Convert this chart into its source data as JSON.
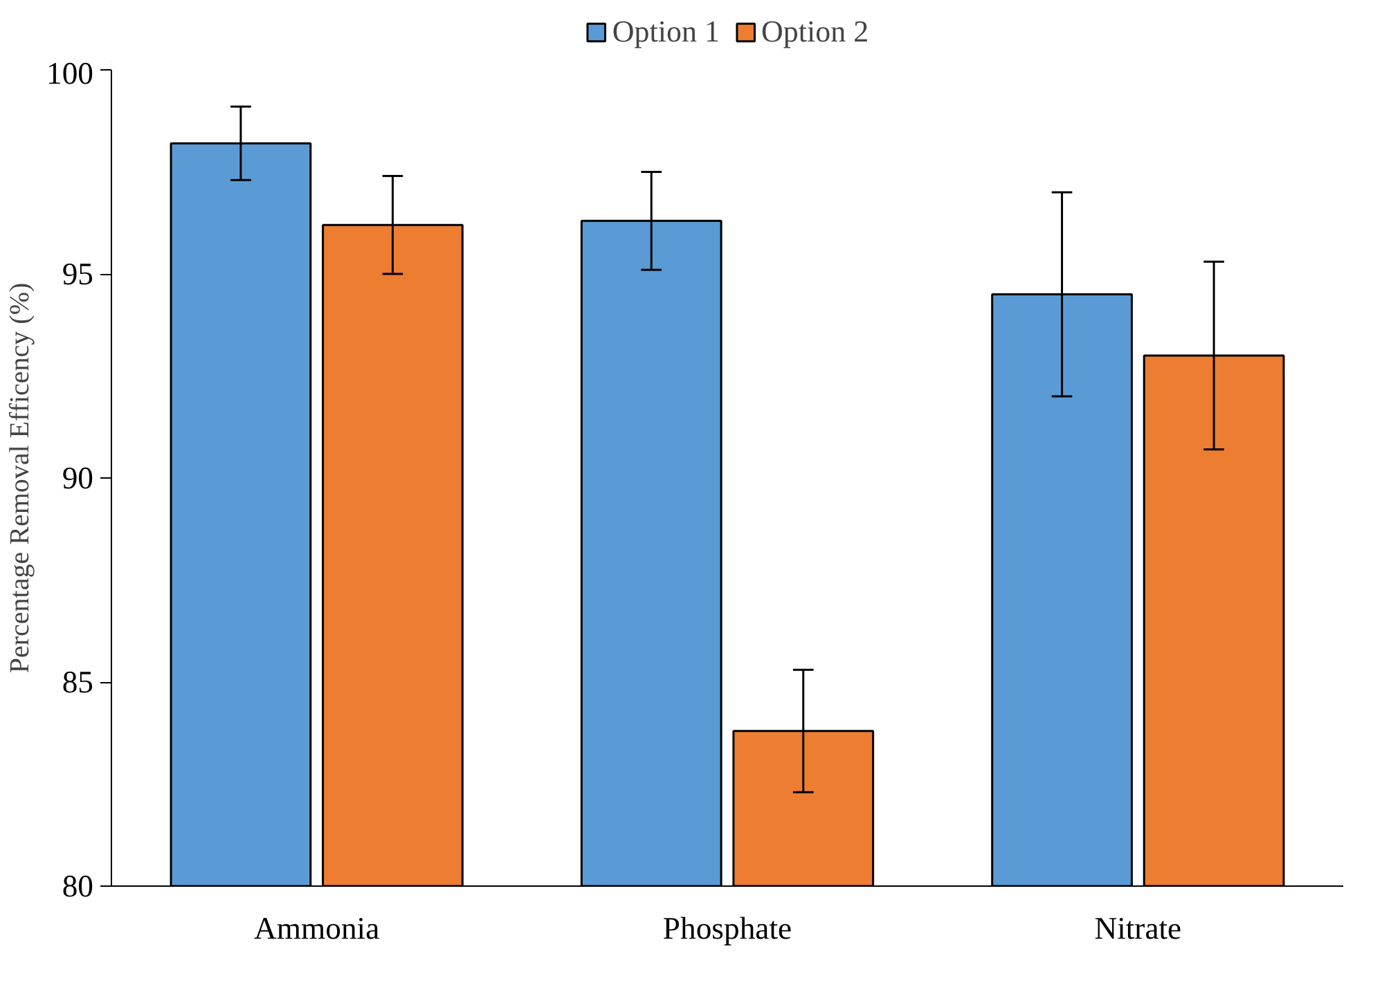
{
  "chart_data": {
    "type": "bar",
    "ylabel": "Percentage Removal Efficency (%)",
    "categories": [
      "Ammonia",
      "Phosphate",
      "Nitrate"
    ],
    "series": [
      {
        "name": "Option 1",
        "color": "#5b9bd5",
        "values": [
          98.2,
          96.3,
          94.5
        ],
        "errors": [
          0.9,
          1.2,
          2.5
        ]
      },
      {
        "name": "Option 2",
        "color": "#ed7d31",
        "values": [
          96.2,
          83.8,
          93.0
        ],
        "errors": [
          1.2,
          1.5,
          2.3
        ]
      }
    ],
    "ylim": [
      80,
      100
    ],
    "yticks": [
      80,
      85,
      90,
      95,
      100
    ],
    "grid": false,
    "legend": "top"
  }
}
